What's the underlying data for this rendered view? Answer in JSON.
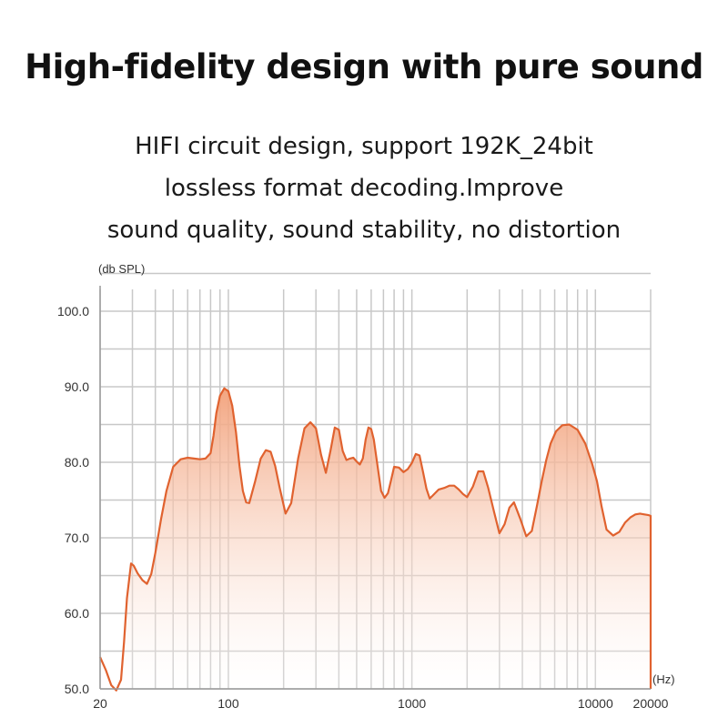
{
  "header": {
    "title": "High-fidelity design with pure sound",
    "description_lines": [
      "HIFI circuit design, support 192K_24bit",
      "lossless format decoding.Improve",
      "sound quality, sound stability, no distortion"
    ]
  },
  "chart_data": {
    "type": "area",
    "title": "",
    "xlabel": "(Hz)",
    "ylabel": "(db SPL)",
    "x_scale": "log",
    "xlim": [
      20,
      20000
    ],
    "ylim": [
      50,
      100
    ],
    "x_ticks": [
      20,
      100,
      1000,
      10000,
      20000
    ],
    "x_tick_labels": [
      "20",
      "100",
      "1000",
      "10000",
      "20000"
    ],
    "y_ticks": [
      50,
      60,
      70,
      80,
      90,
      100
    ],
    "y_tick_labels": [
      "50.0",
      "60.0",
      "70.0",
      "80.0",
      "90.0",
      "100.0"
    ],
    "grid": true,
    "colors": {
      "line": "#e0622f",
      "fill_top": "#f2a079",
      "grid": "#c8c8c8",
      "axis": "#999999"
    },
    "series": [
      {
        "x": [
          20,
          21.5,
          23,
          24.5,
          26,
          27,
          28,
          29.5,
          30.5,
          32,
          34,
          36,
          38,
          40,
          43,
          46,
          50,
          55,
          60,
          65,
          70,
          75,
          80,
          83,
          86,
          90,
          95,
          100,
          105,
          110,
          115,
          120,
          125,
          130,
          140,
          150,
          160,
          170,
          180,
          190,
          205,
          220,
          240,
          260,
          280,
          300,
          320,
          340,
          360,
          380,
          400,
          420,
          440,
          460,
          480,
          500,
          520,
          540,
          560,
          580,
          600,
          620,
          650,
          680,
          710,
          740,
          770,
          800,
          850,
          900,
          950,
          1000,
          1050,
          1100,
          1150,
          1200,
          1250,
          1300,
          1400,
          1500,
          1600,
          1700,
          1800,
          1900,
          2000,
          2150,
          2300,
          2450,
          2600,
          2800,
          3000,
          3200,
          3400,
          3600,
          3900,
          4200,
          4500,
          4800,
          5100,
          5400,
          5700,
          6100,
          6600,
          7200,
          8000,
          8800,
          9600,
          10200,
          10800,
          11500,
          12500,
          13500,
          14500,
          15500,
          16500,
          17500,
          18500,
          19500,
          20000
        ],
        "y": [
          54.2,
          52.5,
          50.5,
          49.8,
          51.2,
          56.2,
          62,
          66.6,
          66.3,
          65.3,
          64.4,
          63.9,
          65.2,
          68,
          72.5,
          76.2,
          79.4,
          80.4,
          80.6,
          80.5,
          80.4,
          80.5,
          81.2,
          83.5,
          86.5,
          88.8,
          89.8,
          89.4,
          87.5,
          84,
          79.5,
          76.2,
          74.7,
          74.6,
          77.5,
          80.5,
          81.6,
          81.4,
          79.5,
          76.7,
          73.2,
          74.6,
          80.5,
          84.5,
          85.3,
          84.5,
          81,
          78.6,
          81.5,
          84.6,
          84.3,
          81.5,
          80.3,
          80.5,
          80.6,
          80.1,
          79.7,
          80.5,
          83,
          84.6,
          84.4,
          83,
          79.5,
          76.2,
          75.3,
          75.9,
          77.6,
          79.4,
          79.3,
          78.7,
          79.1,
          79.9,
          81.1,
          80.9,
          78.7,
          76.5,
          75.2,
          75.6,
          76.4,
          76.6,
          76.9,
          76.9,
          76.4,
          75.8,
          75.4,
          76.8,
          78.8,
          78.8,
          76.7,
          73.5,
          70.6,
          71.8,
          74,
          74.7,
          72.5,
          70.2,
          70.9,
          74.2,
          77.5,
          80.3,
          82.5,
          84.1,
          84.9,
          85,
          84.3,
          82.5,
          79.8,
          77.5,
          74.2,
          71.1,
          70.3,
          70.8,
          72,
          72.7,
          73.1,
          73.2,
          73.1,
          73,
          72.9
        ]
      }
    ]
  }
}
